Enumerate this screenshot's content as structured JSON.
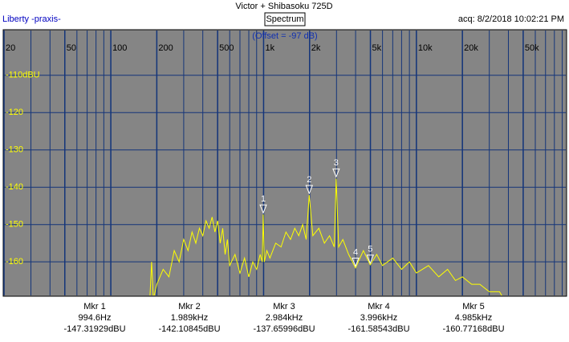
{
  "header": {
    "title": "Victor + Shibasoku 725D",
    "source": "Liberty -praxis-",
    "view_button": "Spectrum",
    "acquired": "acq: 8/2/2018 10:02:21 PM"
  },
  "chart_data": {
    "type": "line",
    "subtitle": "(Offset = -97 dB)",
    "log_x": true,
    "grid": true,
    "xlim": [
      20,
      95000
    ],
    "ylim": [
      -169,
      -98
    ],
    "xticks": [
      20,
      50,
      100,
      200,
      500,
      {
        "value": 1000,
        "label": "1k"
      },
      {
        "value": 2000,
        "label": "2k"
      },
      {
        "value": 5000,
        "label": "5k"
      },
      {
        "value": 10000,
        "label": "10k"
      },
      {
        "value": 20000,
        "label": "20k"
      },
      {
        "value": 50000,
        "label": "50k"
      }
    ],
    "xgrid": [
      20,
      30,
      40,
      50,
      60,
      70,
      80,
      90,
      100,
      200,
      300,
      400,
      500,
      600,
      700,
      800,
      900,
      1000,
      2000,
      3000,
      4000,
      5000,
      6000,
      7000,
      8000,
      9000,
      10000,
      20000,
      30000,
      40000,
      50000,
      60000,
      70000,
      80000,
      90000
    ],
    "yticks": [
      {
        "value": -110,
        "label": "-110dBU"
      },
      -120,
      -130,
      -140,
      -150,
      -160
    ],
    "x": [
      180,
      185,
      190,
      200,
      220,
      240,
      260,
      280,
      300,
      320,
      340,
      360,
      380,
      400,
      420,
      440,
      460,
      480,
      500,
      520,
      540,
      560,
      580,
      600,
      650,
      700,
      750,
      800,
      850,
      900,
      950,
      980,
      994.6,
      1010,
      1050,
      1100,
      1200,
      1300,
      1400,
      1500,
      1600,
      1700,
      1800,
      1900,
      1989,
      2100,
      2300,
      2500,
      2700,
      2900,
      2984,
      3100,
      3300,
      3600,
      3996,
      4500,
      4985,
      5500,
      6000,
      7000,
      8000,
      9000,
      10000,
      12000,
      14000,
      16000,
      18000,
      20000,
      23000,
      26000,
      30000,
      35000,
      40000
    ],
    "series": [
      {
        "color": "#ffff00",
        "values": [
          -170,
          -160,
          -170,
          -166,
          -162,
          -164,
          -157,
          -160,
          -154,
          -157,
          -152,
          -155,
          -151,
          -153,
          -149,
          -151,
          -148,
          -152,
          -149,
          -155,
          -151,
          -158,
          -154,
          -161,
          -158,
          -163,
          -159,
          -164,
          -160,
          -162,
          -158,
          -160,
          -147.3,
          -160,
          -157,
          -159,
          -155,
          -156,
          -152,
          -154,
          -151,
          -153,
          -150,
          -154,
          -142.1,
          -153,
          -151,
          -155,
          -153,
          -156,
          -137.7,
          -156,
          -154,
          -158,
          -161.6,
          -157,
          -160.8,
          -158,
          -161,
          -159,
          -162,
          -160,
          -163,
          -161,
          -164,
          -162,
          -165,
          -164,
          -166,
          -166,
          -168,
          -168,
          -172
        ]
      }
    ],
    "markers": [
      {
        "id": "1",
        "name": "Mkr 1",
        "freq": 994.6,
        "freq_label": "994.6Hz",
        "level": -147.31929,
        "level_label": "-147.31929dBU"
      },
      {
        "id": "2",
        "name": "Mkr 2",
        "freq": 1989,
        "freq_label": "1.989kHz",
        "level": -142.10845,
        "level_label": "-142.10845dBU"
      },
      {
        "id": "3",
        "name": "Mkr 3",
        "freq": 2984,
        "freq_label": "2.984kHz",
        "level": -137.65996,
        "level_label": "-137.65996dBU"
      },
      {
        "id": "4",
        "name": "Mkr 4",
        "freq": 3996,
        "freq_label": "3.996kHz",
        "level": -161.58543,
        "level_label": "-161.58543dBU"
      },
      {
        "id": "5",
        "name": "Mkr 5",
        "freq": 4985,
        "freq_label": "4.985kHz",
        "level": -160.77168,
        "level_label": "-160.77168dBU"
      }
    ]
  }
}
